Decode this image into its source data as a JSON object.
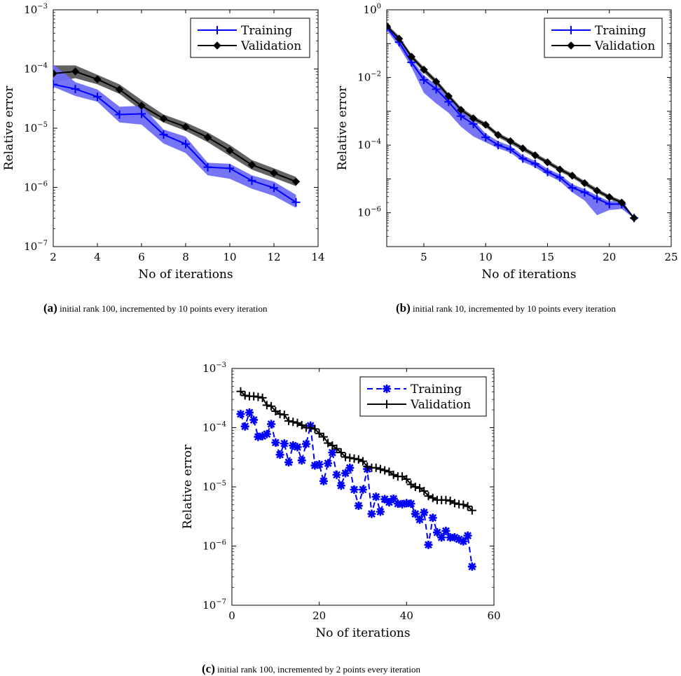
{
  "chart_data": [
    {
      "id": "a",
      "type": "line",
      "caption_label": "(a)",
      "caption_text": "initial rank 100, incremented by 10 points every iteration",
      "xlabel": "No of iterations",
      "ylabel": "Relative error",
      "xlim": [
        2,
        14
      ],
      "ylim_log10": [
        -7,
        -3
      ],
      "y_scale": "log",
      "xticks": [
        2,
        4,
        6,
        8,
        10,
        12,
        14
      ],
      "yticks_exp": [
        -7,
        -6,
        -5,
        -4,
        -3
      ],
      "legend_position": "top-right",
      "grid": false,
      "series": [
        {
          "name": "Training",
          "color": "#0000ff",
          "band_color": "#6e6ef5",
          "marker": "plus",
          "line": "solid",
          "x": [
            2,
            3,
            4,
            5,
            6,
            7,
            8,
            9,
            10,
            11,
            12,
            13
          ],
          "y": [
            5.5e-05,
            4.6e-05,
            3.4e-05,
            1.7e-05,
            1.75e-05,
            7.8e-06,
            5.4e-06,
            2.2e-06,
            2.1e-06,
            1.3e-06,
            9.8e-07,
            5.6e-07
          ],
          "lower": [
            5e-05,
            3.5e-05,
            2.8e-05,
            1.25e-05,
            1.15e-05,
            5.5e-06,
            3.8e-06,
            1.6e-06,
            1.4e-06,
            9.5e-07,
            7.2e-07,
            4.5e-07
          ],
          "upper": [
            0.00012,
            6e-05,
            4.5e-05,
            2.3e-05,
            2.4e-05,
            9.5e-06,
            7.2e-06,
            2.6e-06,
            2.5e-06,
            1.6e-06,
            1.25e-06,
            7.5e-07
          ]
        },
        {
          "name": "Validation",
          "color": "#000000",
          "band_color": "#5a5a5a",
          "marker": "diamond",
          "line": "solid",
          "x": [
            2,
            3,
            4,
            5,
            6,
            7,
            8,
            9,
            10,
            11,
            12,
            13
          ],
          "y": [
            8.4e-05,
            9.1e-05,
            6.7e-05,
            4.5e-05,
            2.4e-05,
            1.45e-05,
            1.05e-05,
            7e-06,
            4.2e-06,
            2.4e-06,
            1.75e-06,
            1.25e-06
          ],
          "lower": [
            6e-05,
            7e-05,
            5.5e-05,
            3.8e-05,
            2e-05,
            1.25e-05,
            9e-06,
            5.8e-06,
            3.4e-06,
            2e-06,
            1.45e-06,
            1.05e-06
          ],
          "upper": [
            0.000115,
            0.000115,
            8e-05,
            5.5e-05,
            3e-05,
            1.7e-05,
            1.25e-05,
            8.5e-06,
            5.2e-06,
            2.9e-06,
            2.1e-06,
            1.5e-06
          ]
        }
      ]
    },
    {
      "id": "b",
      "type": "line",
      "caption_label": "(b)",
      "caption_text": "initial rank 10, incremented by 10 points every iteration",
      "xlabel": "No of iterations",
      "ylabel": "Relative error",
      "xlim": [
        2,
        25
      ],
      "ylim_log10": [
        -7,
        0
      ],
      "y_scale": "log",
      "xticks": [
        5,
        10,
        15,
        20,
        25
      ],
      "yticks_exp": [
        -6,
        -4,
        -2,
        0
      ],
      "legend_position": "top-right",
      "grid": false,
      "series": [
        {
          "name": "Training",
          "color": "#0000ff",
          "band_color": "#6e6ef5",
          "marker": "plus",
          "line": "solid",
          "x": [
            2,
            3,
            4,
            5,
            6,
            7,
            8,
            9,
            10,
            11,
            12,
            13,
            14,
            15,
            16,
            17,
            18,
            19,
            20,
            21,
            22
          ],
          "y": [
            0.3,
            0.11,
            0.028,
            0.0085,
            0.0045,
            0.0019,
            0.00072,
            0.00042,
            0.00017,
            0.0001,
            7.5e-05,
            4e-05,
            2.8e-05,
            1.6e-05,
            1.1e-05,
            5.5e-06,
            4e-06,
            2.6e-06,
            1.8e-06,
            1.8e-06,
            7e-07
          ],
          "lower": [
            0.25,
            0.08,
            0.02,
            0.0035,
            0.0017,
            0.0009,
            0.00035,
            0.00018,
            0.00012,
            8e-05,
            6e-05,
            3.2e-05,
            2.2e-05,
            1.3e-05,
            8.5e-06,
            4e-06,
            2.3e-06,
            8.5e-07,
            1.2e-06,
            1.3e-06,
            6.8e-07
          ],
          "upper": [
            0.35,
            0.13,
            0.035,
            0.0115,
            0.006,
            0.0026,
            0.001,
            0.00055,
            0.00022,
            0.00013,
            9.5e-05,
            5e-05,
            3.4e-05,
            2e-05,
            1.35e-05,
            7e-06,
            5e-06,
            3.2e-06,
            2.2e-06,
            2.2e-06,
            7.4e-07
          ]
        },
        {
          "name": "Validation",
          "color": "#000000",
          "band_color": "#5a5a5a",
          "marker": "diamond",
          "line": "solid",
          "x": [
            2,
            3,
            4,
            5,
            6,
            7,
            8,
            9,
            10,
            11,
            12,
            13,
            14,
            15,
            16,
            17,
            18,
            19,
            20,
            21,
            22
          ],
          "y": [
            0.33,
            0.14,
            0.041,
            0.017,
            0.0075,
            0.0028,
            0.0011,
            0.00062,
            0.0004,
            0.0002,
            0.00013,
            8e-05,
            5e-05,
            3.1e-05,
            1.9e-05,
            1.25e-05,
            7.5e-06,
            4.5e-06,
            2.9e-06,
            2e-06,
            7e-07
          ],
          "lower": [
            0.28,
            0.12,
            0.035,
            0.014,
            0.0063,
            0.0023,
            0.00092,
            0.00052,
            0.00034,
            0.00017,
            0.00011,
            6.8e-05,
            4.3e-05,
            2.7e-05,
            1.65e-05,
            1.08e-05,
            6.5e-06,
            3.9e-06,
            2.5e-06,
            1.75e-06,
            6.6e-07
          ],
          "upper": [
            0.38,
            0.165,
            0.048,
            0.02,
            0.0088,
            0.0033,
            0.0013,
            0.00072,
            0.00046,
            0.00023,
            0.00015,
            9.2e-05,
            5.8e-05,
            3.6e-05,
            2.2e-05,
            1.45e-05,
            8.7e-06,
            5.2e-06,
            3.3e-06,
            2.3e-06,
            7.4e-07
          ]
        }
      ]
    },
    {
      "id": "c",
      "type": "line",
      "caption_label": "(c)",
      "caption_text": "initial rank 100, incremented by 2 points every iteration",
      "xlabel": "No of iterations",
      "ylabel": "Relative error",
      "xlim": [
        0,
        60
      ],
      "ylim_log10": [
        -7,
        -3
      ],
      "y_scale": "log",
      "xticks": [
        0,
        20,
        40,
        60
      ],
      "yticks_exp": [
        -7,
        -6,
        -5,
        -4,
        -3
      ],
      "legend_position": "top-right",
      "grid": false,
      "series": [
        {
          "name": "Training",
          "color": "#0000ff",
          "marker": "asterisk",
          "line": "dashed",
          "x": [
            2,
            3,
            4,
            5,
            6,
            7,
            8,
            9,
            10,
            11,
            12,
            13,
            14,
            15,
            16,
            17,
            18,
            19,
            20,
            21,
            22,
            23,
            24,
            25,
            26,
            27,
            28,
            29,
            30,
            31,
            32,
            33,
            34,
            35,
            36,
            37,
            38,
            39,
            40,
            41,
            42,
            43,
            44,
            45,
            46,
            47,
            48,
            49,
            50,
            51,
            52,
            53,
            54,
            55
          ],
          "y": [
            0.00017,
            0.000105,
            0.00018,
            0.000135,
            7e-05,
            7.2e-05,
            7.8e-05,
            0.000115,
            5.6e-05,
            3.5e-05,
            5.4e-05,
            2.6e-05,
            5e-05,
            4.7e-05,
            2.8e-05,
            5.3e-05,
            0.000108,
            2.3e-05,
            2.4e-05,
            1.25e-05,
            2.5e-05,
            3.8e-05,
            1.6e-05,
            1.05e-05,
            1.7e-05,
            2.1e-05,
            9e-06,
            4.8e-06,
            9e-06,
            2e-05,
            3.5e-06,
            6.8e-06,
            3.8e-06,
            6.2e-06,
            5.5e-06,
            6.3e-06,
            5.2e-06,
            5.1e-06,
            5.3e-06,
            5.2e-06,
            3.5e-06,
            2.8e-06,
            3.7e-06,
            1.05e-06,
            3e-06,
            1.7e-06,
            1.4e-06,
            1.8e-06,
            1.4e-06,
            1.4e-06,
            1.3e-06,
            1.2e-06,
            1.5e-06,
            4.5e-07
          ]
        },
        {
          "name": "Validation",
          "color": "#000000",
          "marker": "plus",
          "line": "solid",
          "x": [
            2,
            3,
            4,
            5,
            6,
            7,
            8,
            9,
            10,
            11,
            12,
            13,
            14,
            15,
            16,
            17,
            18,
            19,
            20,
            21,
            22,
            23,
            24,
            25,
            26,
            27,
            28,
            29,
            30,
            31,
            32,
            33,
            34,
            35,
            36,
            37,
            38,
            39,
            40,
            41,
            42,
            43,
            44,
            45,
            46,
            47,
            48,
            49,
            50,
            51,
            52,
            53,
            54,
            55
          ],
          "y": [
            0.00041,
            0.00035,
            0.00034,
            0.00034,
            0.00033,
            0.00032,
            0.00024,
            0.00023,
            0.00019,
            0.00017,
            0.000165,
            0.00013,
            0.000125,
            0.00012,
            0.00011,
            0.0001,
            0.0001,
            9.5e-05,
            8e-05,
            7e-05,
            5.5e-05,
            5e-05,
            4.4e-05,
            3.8e-05,
            3.2e-05,
            3.1e-05,
            3e-05,
            2.9e-05,
            2.7e-05,
            2.2e-05,
            2.1e-05,
            2.1e-05,
            2e-05,
            1.9e-05,
            1.8e-05,
            1.6e-05,
            1.5e-05,
            1.5e-05,
            1.35e-05,
            1.1e-05,
            1e-05,
            9.5e-06,
            8.5e-06,
            7e-06,
            6.5e-06,
            6e-06,
            6e-06,
            6e-06,
            5.8e-06,
            5.3e-06,
            5.1e-06,
            5e-06,
            4.7e-06,
            4e-06
          ]
        }
      ]
    }
  ]
}
